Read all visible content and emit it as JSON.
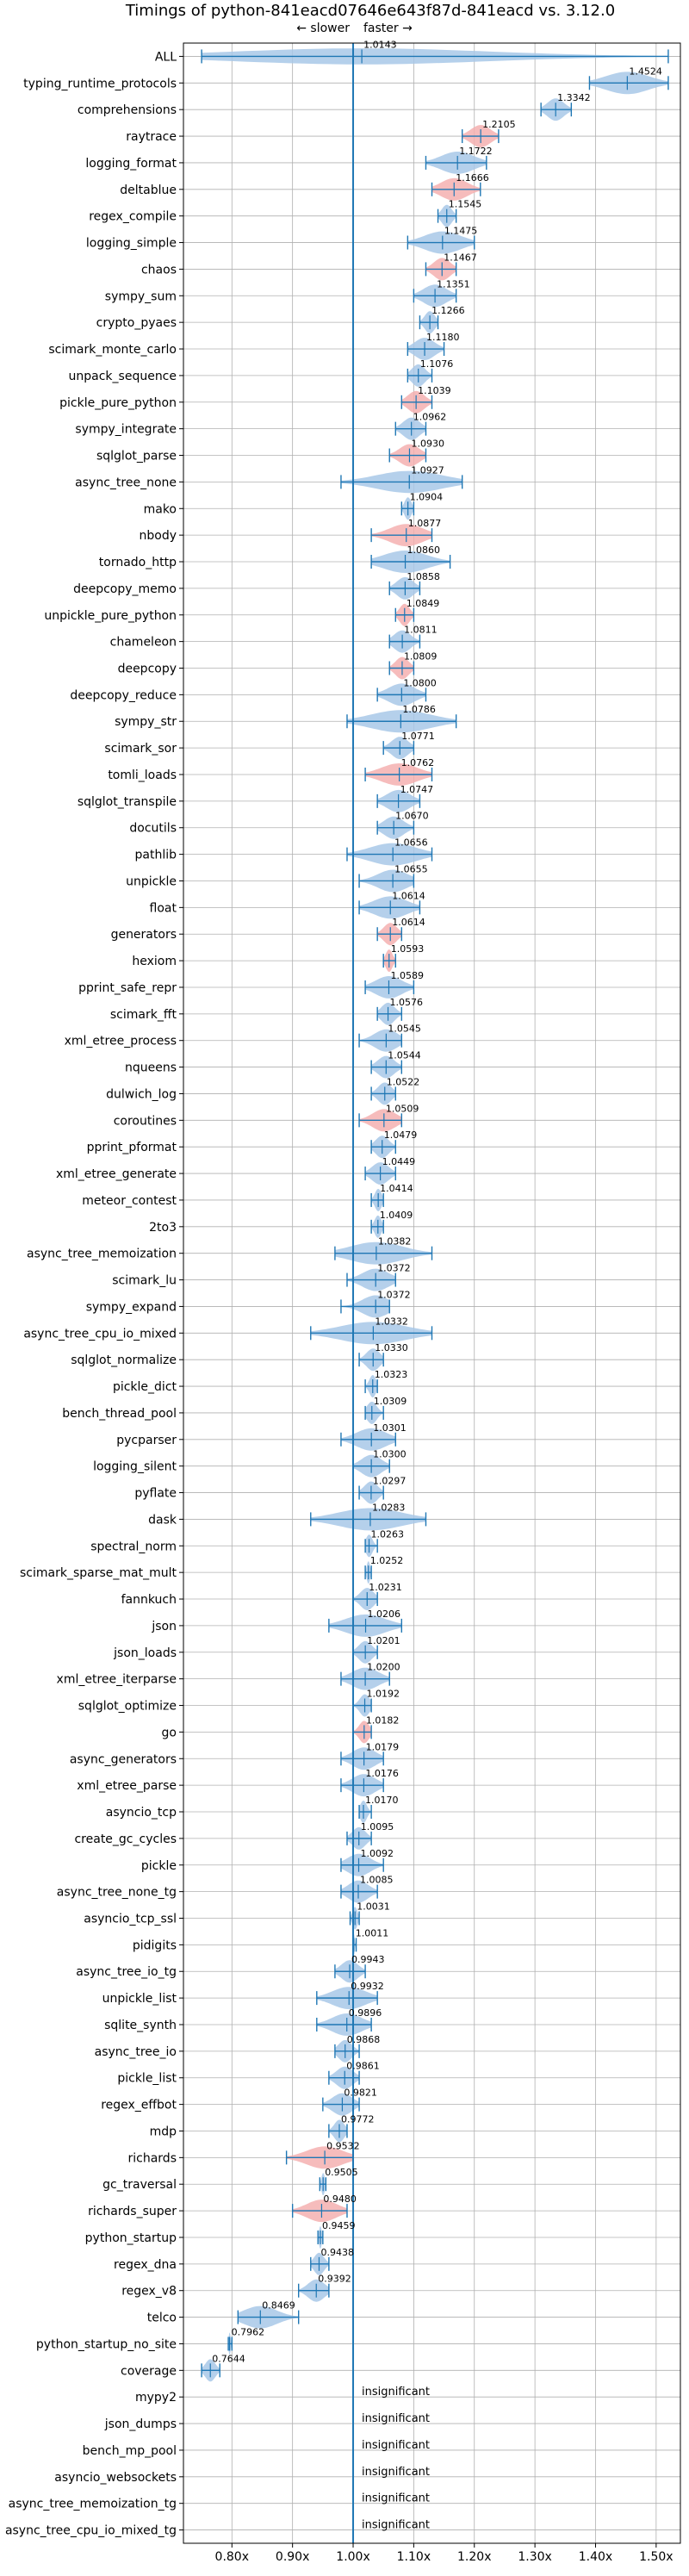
{
  "chart_data": {
    "type": "violin",
    "title": "Timings of python-841eacd07646e643f87d-841eacd vs. 3.12.0",
    "subtitle_slower": "← slower",
    "subtitle_faster": "faster →",
    "xlim": [
      0.72,
      1.54
    ],
    "x_ticks": [
      0.8,
      0.9,
      1.0,
      1.1,
      1.2,
      1.3,
      1.4,
      1.5
    ],
    "x_tick_labels": [
      "0.80x",
      "0.90x",
      "1.00x",
      "1.10x",
      "1.20x",
      "1.30x",
      "1.40x",
      "1.50x"
    ],
    "reference_line": 1.0,
    "grid": true,
    "colors": {
      "faster": "#a8c8e8",
      "slower": "#f4b0b0",
      "line": "#1f77b4"
    },
    "insignificant_label": "insignificant",
    "benchmarks": [
      {
        "name": "ALL",
        "value": 1.0143,
        "label": "1.0143",
        "min": 0.75,
        "max": 1.52,
        "spread": 0.18,
        "color": "blue"
      },
      {
        "name": "typing_runtime_protocols",
        "value": 1.4524,
        "label": "1.4524",
        "min": 1.39,
        "max": 1.52,
        "spread": 0.04,
        "color": "blue"
      },
      {
        "name": "comprehensions",
        "value": 1.3342,
        "label": "1.3342",
        "min": 1.31,
        "max": 1.36,
        "spread": 0.015,
        "color": "blue"
      },
      {
        "name": "raytrace",
        "value": 1.2105,
        "label": "1.2105",
        "min": 1.18,
        "max": 1.24,
        "spread": 0.02,
        "color": "red"
      },
      {
        "name": "logging_format",
        "value": 1.1722,
        "label": "1.1722",
        "min": 1.12,
        "max": 1.22,
        "spread": 0.03,
        "color": "blue"
      },
      {
        "name": "deltablue",
        "value": 1.1666,
        "label": "1.1666",
        "min": 1.13,
        "max": 1.21,
        "spread": 0.025,
        "color": "red"
      },
      {
        "name": "regex_compile",
        "value": 1.1545,
        "label": "1.1545",
        "min": 1.14,
        "max": 1.17,
        "spread": 0.01,
        "color": "blue"
      },
      {
        "name": "logging_simple",
        "value": 1.1475,
        "label": "1.1475",
        "min": 1.09,
        "max": 1.2,
        "spread": 0.03,
        "color": "blue"
      },
      {
        "name": "chaos",
        "value": 1.1467,
        "label": "1.1467",
        "min": 1.12,
        "max": 1.17,
        "spread": 0.015,
        "color": "red"
      },
      {
        "name": "sympy_sum",
        "value": 1.1351,
        "label": "1.1351",
        "min": 1.1,
        "max": 1.17,
        "spread": 0.02,
        "color": "blue"
      },
      {
        "name": "crypto_pyaes",
        "value": 1.1266,
        "label": "1.1266",
        "min": 1.11,
        "max": 1.14,
        "spread": 0.01,
        "color": "blue"
      },
      {
        "name": "scimark_monte_carlo",
        "value": 1.118,
        "label": "1.1180",
        "min": 1.09,
        "max": 1.15,
        "spread": 0.015,
        "color": "blue"
      },
      {
        "name": "unpack_sequence",
        "value": 1.1076,
        "label": "1.1076",
        "min": 1.09,
        "max": 1.13,
        "spread": 0.012,
        "color": "blue"
      },
      {
        "name": "pickle_pure_python",
        "value": 1.1039,
        "label": "1.1039",
        "min": 1.08,
        "max": 1.13,
        "spread": 0.015,
        "color": "red"
      },
      {
        "name": "sympy_integrate",
        "value": 1.0962,
        "label": "1.0962",
        "min": 1.07,
        "max": 1.12,
        "spread": 0.015,
        "color": "blue"
      },
      {
        "name": "sqlglot_parse",
        "value": 1.093,
        "label": "1.0930",
        "min": 1.06,
        "max": 1.12,
        "spread": 0.02,
        "color": "red"
      },
      {
        "name": "async_tree_none",
        "value": 1.0927,
        "label": "1.0927",
        "min": 0.98,
        "max": 1.18,
        "spread": 0.05,
        "color": "blue"
      },
      {
        "name": "mako",
        "value": 1.0904,
        "label": "1.0904",
        "min": 1.08,
        "max": 1.1,
        "spread": 0.008,
        "color": "blue"
      },
      {
        "name": "nbody",
        "value": 1.0877,
        "label": "1.0877",
        "min": 1.03,
        "max": 1.13,
        "spread": 0.03,
        "color": "red"
      },
      {
        "name": "tornado_http",
        "value": 1.086,
        "label": "1.0860",
        "min": 1.03,
        "max": 1.16,
        "spread": 0.035,
        "color": "blue"
      },
      {
        "name": "deepcopy_memo",
        "value": 1.0858,
        "label": "1.0858",
        "min": 1.06,
        "max": 1.11,
        "spread": 0.015,
        "color": "blue"
      },
      {
        "name": "unpickle_pure_python",
        "value": 1.0849,
        "label": "1.0849",
        "min": 1.07,
        "max": 1.1,
        "spread": 0.01,
        "color": "red"
      },
      {
        "name": "chameleon",
        "value": 1.0811,
        "label": "1.0811",
        "min": 1.06,
        "max": 1.11,
        "spread": 0.015,
        "color": "blue"
      },
      {
        "name": "deepcopy",
        "value": 1.0809,
        "label": "1.0809",
        "min": 1.06,
        "max": 1.1,
        "spread": 0.012,
        "color": "red"
      },
      {
        "name": "deepcopy_reduce",
        "value": 1.08,
        "label": "1.0800",
        "min": 1.04,
        "max": 1.12,
        "spread": 0.02,
        "color": "blue"
      },
      {
        "name": "sympy_str",
        "value": 1.0786,
        "label": "1.0786",
        "min": 0.99,
        "max": 1.17,
        "spread": 0.045,
        "color": "blue"
      },
      {
        "name": "scimark_sor",
        "value": 1.0771,
        "label": "1.0771",
        "min": 1.05,
        "max": 1.1,
        "spread": 0.015,
        "color": "blue"
      },
      {
        "name": "tomli_loads",
        "value": 1.0762,
        "label": "1.0762",
        "min": 1.02,
        "max": 1.13,
        "spread": 0.03,
        "color": "red"
      },
      {
        "name": "sqlglot_transpile",
        "value": 1.0747,
        "label": "1.0747",
        "min": 1.04,
        "max": 1.11,
        "spread": 0.02,
        "color": "blue"
      },
      {
        "name": "docutils",
        "value": 1.067,
        "label": "1.0670",
        "min": 1.04,
        "max": 1.1,
        "spread": 0.015,
        "color": "blue"
      },
      {
        "name": "pathlib",
        "value": 1.0656,
        "label": "1.0656",
        "min": 0.99,
        "max": 1.13,
        "spread": 0.035,
        "color": "blue"
      },
      {
        "name": "unpickle",
        "value": 1.0655,
        "label": "1.0655",
        "min": 1.01,
        "max": 1.1,
        "spread": 0.025,
        "color": "blue"
      },
      {
        "name": "float",
        "value": 1.0614,
        "label": "1.0614",
        "min": 1.01,
        "max": 1.11,
        "spread": 0.025,
        "color": "blue"
      },
      {
        "name": "generators",
        "value": 1.0614,
        "label": "1.0614",
        "min": 1.04,
        "max": 1.08,
        "spread": 0.012,
        "color": "red"
      },
      {
        "name": "hexiom",
        "value": 1.0593,
        "label": "1.0593",
        "min": 1.05,
        "max": 1.07,
        "spread": 0.008,
        "color": "red"
      },
      {
        "name": "pprint_safe_repr",
        "value": 1.0589,
        "label": "1.0589",
        "min": 1.02,
        "max": 1.1,
        "spread": 0.02,
        "color": "blue"
      },
      {
        "name": "scimark_fft",
        "value": 1.0576,
        "label": "1.0576",
        "min": 1.04,
        "max": 1.08,
        "spread": 0.01,
        "color": "blue"
      },
      {
        "name": "xml_etree_process",
        "value": 1.0545,
        "label": "1.0545",
        "min": 1.01,
        "max": 1.08,
        "spread": 0.015,
        "color": "blue"
      },
      {
        "name": "nqueens",
        "value": 1.0544,
        "label": "1.0544",
        "min": 1.03,
        "max": 1.08,
        "spread": 0.012,
        "color": "blue"
      },
      {
        "name": "dulwich_log",
        "value": 1.0522,
        "label": "1.0522",
        "min": 1.03,
        "max": 1.07,
        "spread": 0.01,
        "color": "blue"
      },
      {
        "name": "coroutines",
        "value": 1.0509,
        "label": "1.0509",
        "min": 1.01,
        "max": 1.08,
        "spread": 0.02,
        "color": "red"
      },
      {
        "name": "pprint_pformat",
        "value": 1.0479,
        "label": "1.0479",
        "min": 1.03,
        "max": 1.07,
        "spread": 0.012,
        "color": "blue"
      },
      {
        "name": "xml_etree_generate",
        "value": 1.0449,
        "label": "1.0449",
        "min": 1.02,
        "max": 1.07,
        "spread": 0.015,
        "color": "blue"
      },
      {
        "name": "meteor_contest",
        "value": 1.0414,
        "label": "1.0414",
        "min": 1.03,
        "max": 1.05,
        "spread": 0.006,
        "color": "blue"
      },
      {
        "name": "2to3",
        "value": 1.0409,
        "label": "1.0409",
        "min": 1.03,
        "max": 1.05,
        "spread": 0.006,
        "color": "blue"
      },
      {
        "name": "async_tree_memoization",
        "value": 1.0382,
        "label": "1.0382",
        "min": 0.97,
        "max": 1.13,
        "spread": 0.04,
        "color": "blue"
      },
      {
        "name": "scimark_lu",
        "value": 1.0372,
        "label": "1.0372",
        "min": 0.99,
        "max": 1.07,
        "spread": 0.02,
        "color": "blue"
      },
      {
        "name": "sympy_expand",
        "value": 1.0372,
        "label": "1.0372",
        "min": 0.98,
        "max": 1.06,
        "spread": 0.02,
        "color": "blue"
      },
      {
        "name": "async_tree_cpu_io_mixed",
        "value": 1.0332,
        "label": "1.0332",
        "min": 0.93,
        "max": 1.13,
        "spread": 0.045,
        "color": "blue"
      },
      {
        "name": "sqlglot_normalize",
        "value": 1.033,
        "label": "1.0330",
        "min": 1.01,
        "max": 1.05,
        "spread": 0.012,
        "color": "blue"
      },
      {
        "name": "pickle_dict",
        "value": 1.0323,
        "label": "1.0323",
        "min": 1.02,
        "max": 1.04,
        "spread": 0.008,
        "color": "blue"
      },
      {
        "name": "bench_thread_pool",
        "value": 1.0309,
        "label": "1.0309",
        "min": 1.02,
        "max": 1.05,
        "spread": 0.008,
        "color": "blue"
      },
      {
        "name": "pycparser",
        "value": 1.0301,
        "label": "1.0301",
        "min": 0.98,
        "max": 1.07,
        "spread": 0.025,
        "color": "blue"
      },
      {
        "name": "logging_silent",
        "value": 1.03,
        "label": "1.0300",
        "min": 1.0,
        "max": 1.06,
        "spread": 0.015,
        "color": "blue"
      },
      {
        "name": "pyflate",
        "value": 1.0297,
        "label": "1.0297",
        "min": 1.01,
        "max": 1.05,
        "spread": 0.01,
        "color": "blue"
      },
      {
        "name": "dask",
        "value": 1.0283,
        "label": "1.0283",
        "min": 0.93,
        "max": 1.12,
        "spread": 0.045,
        "color": "blue"
      },
      {
        "name": "spectral_norm",
        "value": 1.0263,
        "label": "1.0263",
        "min": 1.02,
        "max": 1.04,
        "spread": 0.006,
        "color": "blue"
      },
      {
        "name": "scimark_sparse_mat_mult",
        "value": 1.0252,
        "label": "1.0252",
        "min": 1.02,
        "max": 1.03,
        "spread": 0.006,
        "color": "blue"
      },
      {
        "name": "fannkuch",
        "value": 1.0231,
        "label": "1.0231",
        "min": 1.0,
        "max": 1.04,
        "spread": 0.01,
        "color": "blue"
      },
      {
        "name": "json",
        "value": 1.0206,
        "label": "1.0206",
        "min": 0.96,
        "max": 1.08,
        "spread": 0.03,
        "color": "blue"
      },
      {
        "name": "json_loads",
        "value": 1.0201,
        "label": "1.0201",
        "min": 1.0,
        "max": 1.04,
        "spread": 0.012,
        "color": "blue"
      },
      {
        "name": "xml_etree_iterparse",
        "value": 1.02,
        "label": "1.0200",
        "min": 0.98,
        "max": 1.06,
        "spread": 0.02,
        "color": "blue"
      },
      {
        "name": "sqlglot_optimize",
        "value": 1.0192,
        "label": "1.0192",
        "min": 1.0,
        "max": 1.03,
        "spread": 0.01,
        "color": "blue"
      },
      {
        "name": "go",
        "value": 1.0182,
        "label": "1.0182",
        "min": 1.0,
        "max": 1.03,
        "spread": 0.01,
        "color": "red"
      },
      {
        "name": "async_generators",
        "value": 1.0179,
        "label": "1.0179",
        "min": 0.98,
        "max": 1.05,
        "spread": 0.02,
        "color": "blue"
      },
      {
        "name": "xml_etree_parse",
        "value": 1.0176,
        "label": "1.0176",
        "min": 0.98,
        "max": 1.05,
        "spread": 0.015,
        "color": "blue"
      },
      {
        "name": "asyncio_tcp",
        "value": 1.017,
        "label": "1.0170",
        "min": 1.01,
        "max": 1.03,
        "spread": 0.006,
        "color": "blue"
      },
      {
        "name": "create_gc_cycles",
        "value": 1.0095,
        "label": "1.0095",
        "min": 0.99,
        "max": 1.03,
        "spread": 0.012,
        "color": "blue"
      },
      {
        "name": "pickle",
        "value": 1.0092,
        "label": "1.0092",
        "min": 0.98,
        "max": 1.05,
        "spread": 0.015,
        "color": "blue"
      },
      {
        "name": "async_tree_none_tg",
        "value": 1.0085,
        "label": "1.0085",
        "min": 0.98,
        "max": 1.04,
        "spread": 0.012,
        "color": "blue"
      },
      {
        "name": "asyncio_tcp_ssl",
        "value": 1.0031,
        "label": "1.0031",
        "min": 0.995,
        "max": 1.01,
        "spread": 0.006,
        "color": "blue"
      },
      {
        "name": "pidigits",
        "value": 1.0011,
        "label": "1.0011",
        "min": 1.0,
        "max": 1.005,
        "spread": 0.003,
        "color": "blue"
      },
      {
        "name": "async_tree_io_tg",
        "value": 0.9943,
        "label": "0.9943",
        "min": 0.97,
        "max": 1.02,
        "spread": 0.01,
        "color": "blue"
      },
      {
        "name": "unpickle_list",
        "value": 0.9932,
        "label": "0.9932",
        "min": 0.94,
        "max": 1.04,
        "spread": 0.02,
        "color": "blue"
      },
      {
        "name": "sqlite_synth",
        "value": 0.9896,
        "label": "0.9896",
        "min": 0.94,
        "max": 1.03,
        "spread": 0.03,
        "color": "blue"
      },
      {
        "name": "async_tree_io",
        "value": 0.9868,
        "label": "0.9868",
        "min": 0.97,
        "max": 1.01,
        "spread": 0.012,
        "color": "blue"
      },
      {
        "name": "pickle_list",
        "value": 0.9861,
        "label": "0.9861",
        "min": 0.96,
        "max": 1.01,
        "spread": 0.012,
        "color": "blue"
      },
      {
        "name": "regex_effbot",
        "value": 0.9821,
        "label": "0.9821",
        "min": 0.95,
        "max": 1.01,
        "spread": 0.015,
        "color": "blue"
      },
      {
        "name": "mdp",
        "value": 0.9772,
        "label": "0.9772",
        "min": 0.96,
        "max": 0.99,
        "spread": 0.008,
        "color": "blue"
      },
      {
        "name": "richards",
        "value": 0.9532,
        "label": "0.9532",
        "min": 0.89,
        "max": 1.0,
        "spread": 0.035,
        "color": "red"
      },
      {
        "name": "gc_traversal",
        "value": 0.9505,
        "label": "0.9505",
        "min": 0.945,
        "max": 0.955,
        "spread": 0.004,
        "color": "blue"
      },
      {
        "name": "richards_super",
        "value": 0.948,
        "label": "0.9480",
        "min": 0.9,
        "max": 0.99,
        "spread": 0.03,
        "color": "red"
      },
      {
        "name": "python_startup",
        "value": 0.9459,
        "label": "0.9459",
        "min": 0.942,
        "max": 0.95,
        "spread": 0.004,
        "color": "blue"
      },
      {
        "name": "regex_dna",
        "value": 0.9438,
        "label": "0.9438",
        "min": 0.93,
        "max": 0.96,
        "spread": 0.008,
        "color": "blue"
      },
      {
        "name": "regex_v8",
        "value": 0.9392,
        "label": "0.9392",
        "min": 0.91,
        "max": 0.96,
        "spread": 0.012,
        "color": "blue"
      },
      {
        "name": "telco",
        "value": 0.8469,
        "label": "0.8469",
        "min": 0.81,
        "max": 0.91,
        "spread": 0.025,
        "color": "blue"
      },
      {
        "name": "python_startup_no_site",
        "value": 0.7962,
        "label": "0.7962",
        "min": 0.794,
        "max": 0.8,
        "spread": 0.003,
        "color": "blue"
      },
      {
        "name": "coverage",
        "value": 0.7644,
        "label": "0.7644",
        "min": 0.75,
        "max": 0.78,
        "spread": 0.008,
        "color": "blue"
      },
      {
        "name": "mypy2",
        "insignificant": true
      },
      {
        "name": "json_dumps",
        "insignificant": true
      },
      {
        "name": "bench_mp_pool",
        "insignificant": true
      },
      {
        "name": "asyncio_websockets",
        "insignificant": true
      },
      {
        "name": "async_tree_memoization_tg",
        "insignificant": true
      },
      {
        "name": "async_tree_cpu_io_mixed_tg",
        "insignificant": true
      }
    ]
  }
}
